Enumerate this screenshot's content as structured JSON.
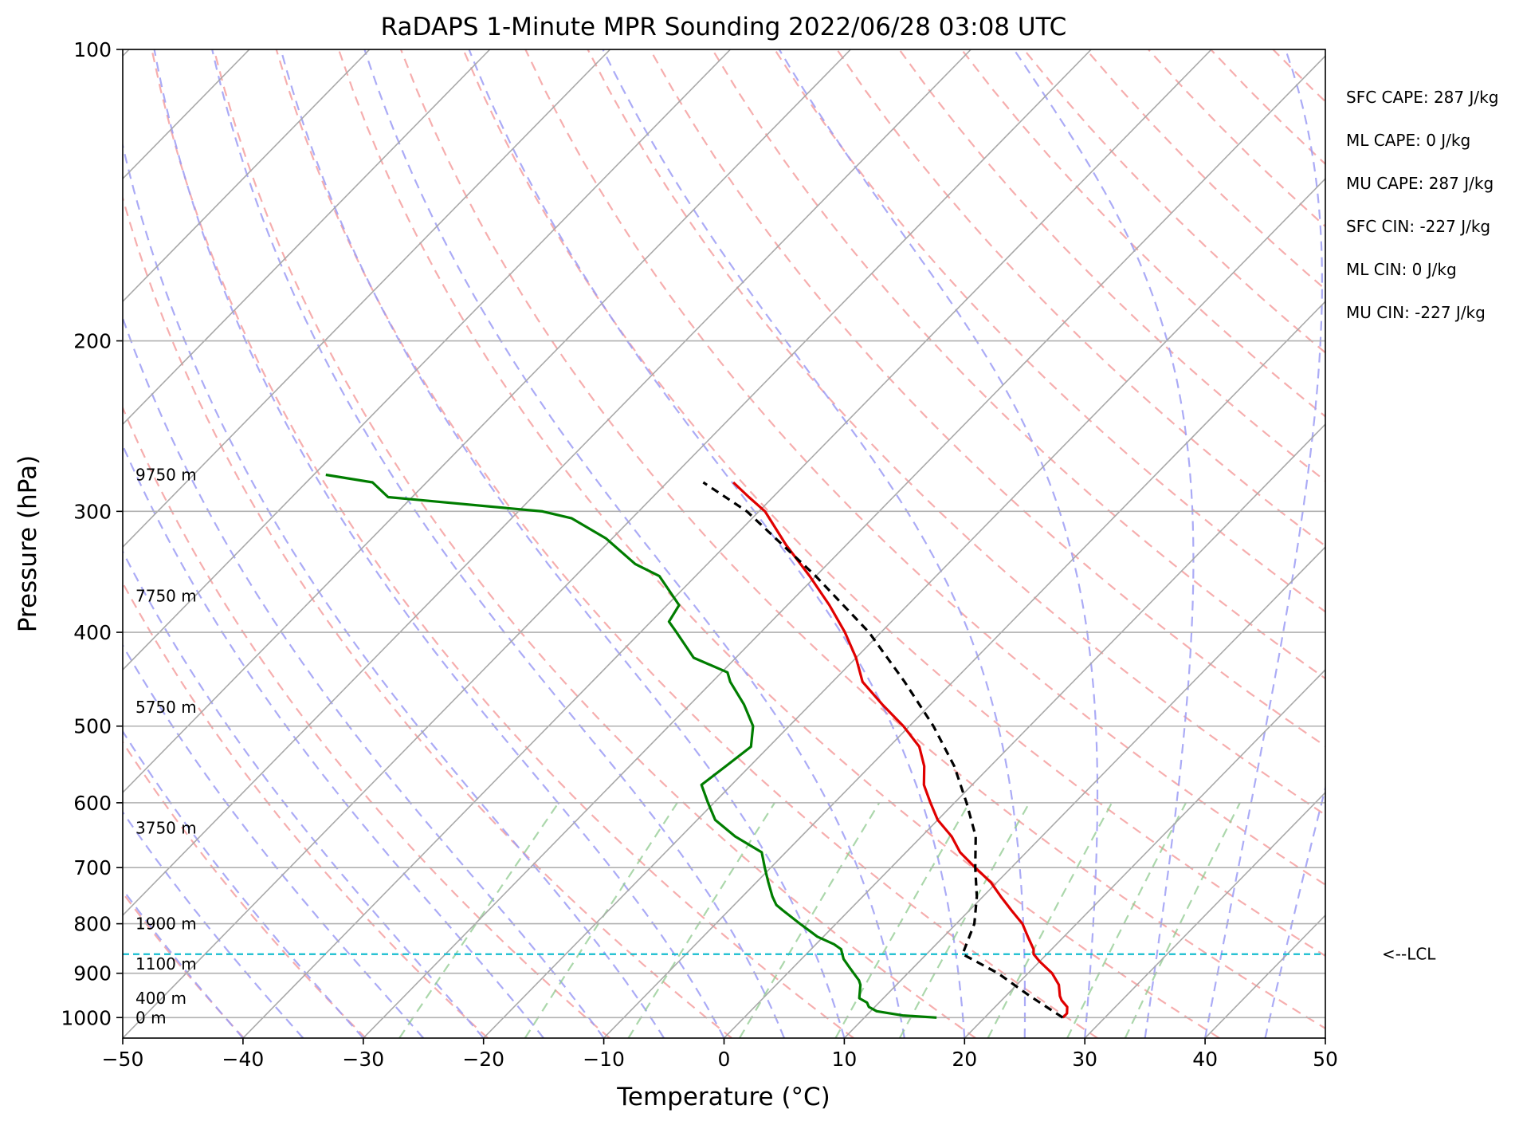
{
  "chart_data": {
    "type": "line",
    "title": "RaDAPS 1-Minute MPR Sounding 2022/06/28 03:08 UTC",
    "xlabel": "Temperature (°C)",
    "ylabel": "Pressure (hPa)",
    "xlim": [
      -50,
      50
    ],
    "ylim": [
      1050,
      100
    ],
    "y_scale": "log",
    "skew_t": true,
    "x_ticks": [
      -50,
      -40,
      -30,
      -20,
      -10,
      0,
      10,
      20,
      30,
      40,
      50
    ],
    "x_tick_labels": [
      "−50",
      "−40",
      "−30",
      "−20",
      "−10",
      "0",
      "10",
      "20",
      "30",
      "40",
      "50"
    ],
    "y_ticks": [
      100,
      200,
      300,
      400,
      500,
      600,
      700,
      800,
      900,
      1000
    ],
    "y_tick_labels": [
      "100",
      "200",
      "300",
      "400",
      "500",
      "600",
      "700",
      "800",
      "900",
      "1000"
    ],
    "grid": true,
    "series": [
      {
        "role": "temperature",
        "color": "#e00000",
        "style": "solid",
        "pressure": [
          1000,
          990,
          975,
          960,
          950,
          925,
          900,
          875,
          860,
          850,
          825,
          800,
          775,
          750,
          725,
          700,
          675,
          650,
          625,
          600,
          575,
          550,
          525,
          500,
          475,
          450,
          425,
          400,
          375,
          350,
          325,
          300,
          290,
          280
        ],
        "temperature": [
          26.5,
          26.5,
          26.0,
          25.0,
          24.5,
          23.5,
          22.0,
          20.0,
          18.9,
          18.5,
          17.0,
          15.5,
          13.5,
          11.5,
          9.5,
          7.0,
          4.5,
          2.5,
          0.0,
          -2.0,
          -4.0,
          -5.5,
          -7.5,
          -10.5,
          -14.0,
          -17.5,
          -20.0,
          -23.0,
          -26.5,
          -30.5,
          -35.0,
          -39.5,
          -42.0,
          -44.5
        ]
      },
      {
        "role": "dewpoint",
        "color": "#007d00",
        "style": "solid",
        "pressure": [
          1000,
          995,
          985,
          975,
          965,
          955,
          940,
          925,
          915,
          900,
          885,
          870,
          860,
          850,
          840,
          825,
          800,
          775,
          765,
          750,
          725,
          700,
          675,
          650,
          625,
          600,
          575,
          550,
          525,
          500,
          475,
          450,
          440,
          425,
          400,
          390,
          375,
          350,
          340,
          320,
          305,
          300,
          290,
          280,
          275
        ],
        "dewpoint": [
          16.0,
          13.0,
          10.5,
          9.5,
          9.0,
          8.0,
          7.5,
          7.0,
          6.5,
          5.5,
          4.5,
          3.5,
          3.0,
          2.5,
          1.5,
          -0.5,
          -3.0,
          -5.5,
          -6.5,
          -7.5,
          -9.0,
          -10.5,
          -12.0,
          -15.5,
          -18.5,
          -20.5,
          -22.5,
          -22.0,
          -21.5,
          -23.0,
          -25.5,
          -28.5,
          -29.5,
          -33.5,
          -37.0,
          -38.5,
          -39.0,
          -43.0,
          -46.0,
          -50.5,
          -55.0,
          -58.0,
          -72.0,
          -74.5,
          -79.0
        ]
      },
      {
        "role": "parcel",
        "color": "#000000",
        "style": "dashed",
        "pressure": [
          1000,
          950,
          900,
          860,
          800,
          750,
          700,
          650,
          600,
          550,
          500,
          450,
          400,
          350,
          300,
          280
        ],
        "temperature": [
          26.5,
          22.0,
          17.5,
          13.0,
          11.5,
          9.5,
          7.0,
          4.5,
          1.0,
          -3.0,
          -8.0,
          -14.0,
          -21.0,
          -30.0,
          -41.0,
          -47.0
        ]
      }
    ],
    "lcl": {
      "pressure": 860,
      "color": "#17becf",
      "style": "dashed",
      "label": "<--LCL"
    },
    "height_labels": [
      {
        "pressure": 1000,
        "label": "0 m"
      },
      {
        "pressure": 955,
        "label": "400 m"
      },
      {
        "pressure": 880,
        "label": "1100 m"
      },
      {
        "pressure": 800,
        "label": "1900 m"
      },
      {
        "pressure": 637,
        "label": "3750 m"
      },
      {
        "pressure": 478,
        "label": "5750 m"
      },
      {
        "pressure": 367,
        "label": "7750 m"
      },
      {
        "pressure": 275,
        "label": "9750 m"
      }
    ],
    "background_lines": {
      "isotherms_color": "#a9a9a9",
      "dry_adiabats_color": "#f4a0a0",
      "moist_adiabats_color": "#9c9cf4",
      "mixing_ratio_color": "#8fc98f"
    },
    "stats": [
      "SFC CAPE: 287 J/kg",
      "ML CAPE: 0 J/kg",
      "MU CAPE: 287 J/kg",
      "SFC CIN: -227 J/kg",
      "ML CIN: 0 J/kg",
      "MU CIN: -227 J/kg"
    ]
  }
}
